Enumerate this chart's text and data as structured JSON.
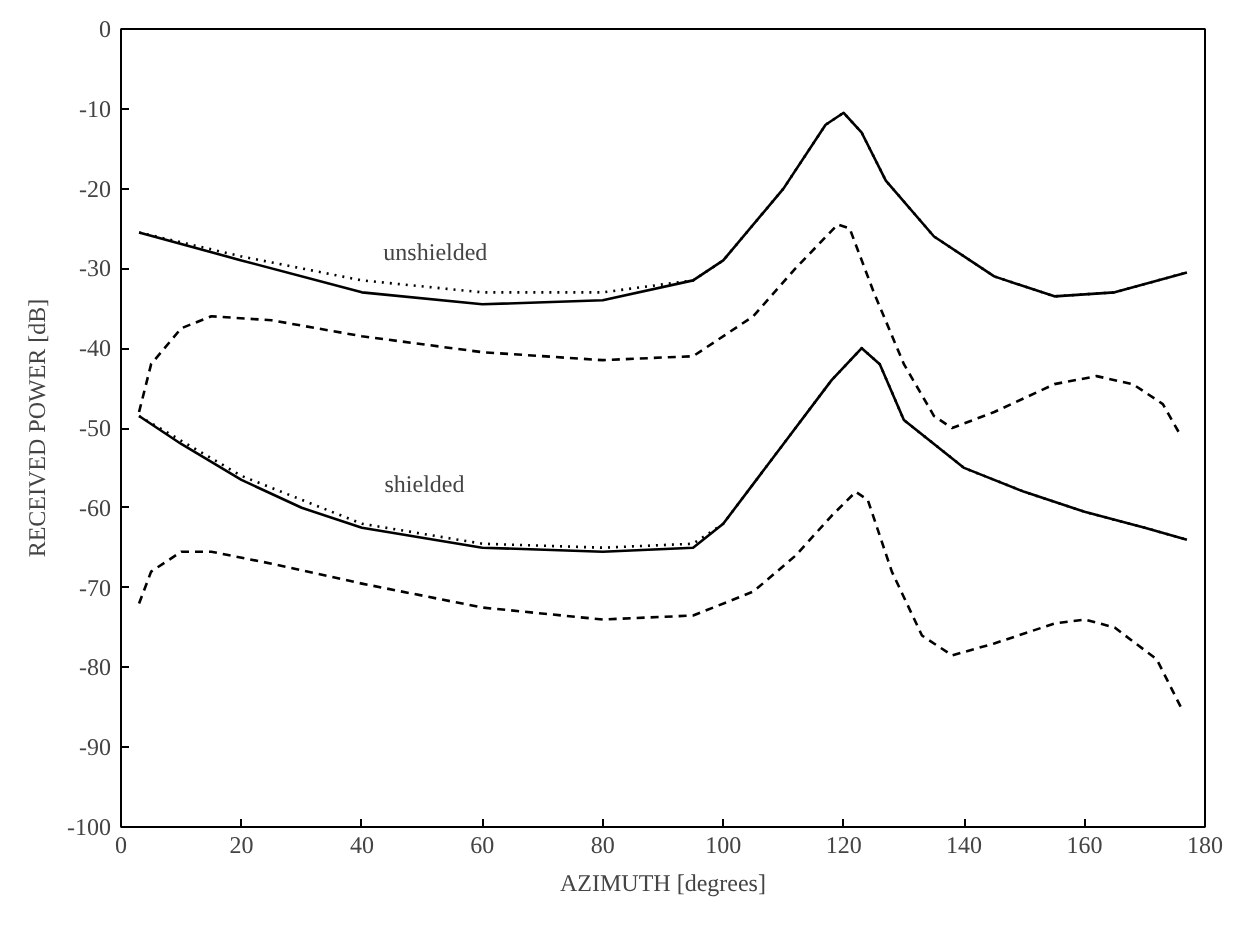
{
  "chart_data": {
    "type": "line",
    "xlabel": "AZIMUTH [degrees]",
    "ylabel": "RECEIVED POWER [dB]",
    "xlim": [
      0,
      180
    ],
    "ylim": [
      -100,
      0
    ],
    "xticks": [
      0,
      20,
      40,
      60,
      80,
      100,
      120,
      140,
      160,
      180
    ],
    "yticks": [
      0,
      -10,
      -20,
      -30,
      -40,
      -50,
      -60,
      -70,
      -80,
      -90,
      -100
    ],
    "grid": false,
    "annotations": [
      "unshielded",
      "shielded"
    ],
    "series": [
      {
        "color": "#000000",
        "line_style": "solid",
        "x": [
          3,
          20,
          40,
          60,
          80,
          95,
          100,
          110,
          117,
          120,
          123,
          127,
          135,
          145,
          155,
          165,
          177
        ],
        "values": [
          -25.5,
          -29,
          -33,
          -34.5,
          -34,
          -31.5,
          -29,
          -20,
          -12,
          -10.5,
          -13,
          -19,
          -26,
          -31,
          -33.5,
          -33,
          -30.5
        ]
      },
      {
        "color": "#000000",
        "line_style": "dotted",
        "x": [
          3,
          20,
          40,
          60,
          80,
          95,
          100,
          110,
          117,
          120,
          123,
          127,
          135,
          145,
          155,
          165,
          177
        ],
        "values": [
          -25.5,
          -28.5,
          -31.5,
          -33,
          -33,
          -31.5,
          -29,
          -20,
          -12,
          -10.5,
          -13,
          -19,
          -26,
          -31,
          -33.5,
          -33,
          -30.5
        ]
      },
      {
        "color": "#000000",
        "line_style": "dashed",
        "x": [
          3,
          5,
          10,
          15,
          25,
          40,
          60,
          80,
          95,
          105,
          112,
          119,
          121,
          125,
          130,
          135,
          138,
          145,
          155,
          162,
          168,
          173,
          176
        ],
        "values": [
          -48,
          -42,
          -37.5,
          -36,
          -36.5,
          -38.5,
          -40.5,
          -41.5,
          -41,
          -36,
          -30,
          -24.5,
          -25,
          -33,
          -42,
          -48.5,
          -50,
          -48,
          -44.5,
          -43.5,
          -44.5,
          -47,
          -51
        ]
      },
      {
        "color": "#000000",
        "line_style": "solid",
        "x": [
          3,
          10,
          20,
          30,
          40,
          60,
          80,
          95,
          100,
          110,
          118,
          123,
          126,
          130,
          140,
          150,
          160,
          170,
          177
        ],
        "values": [
          -48.5,
          -52,
          -56.5,
          -60,
          -62.5,
          -65,
          -65.5,
          -65,
          -62,
          -52,
          -44,
          -40,
          -42,
          -49,
          -55,
          -58,
          -60.5,
          -62.5,
          -64
        ]
      },
      {
        "color": "#000000",
        "line_style": "dotted",
        "x": [
          3,
          20,
          40,
          60,
          80,
          95,
          100,
          110,
          118,
          123,
          126,
          130,
          140,
          150,
          160,
          170,
          177
        ],
        "values": [
          -48.5,
          -56,
          -62,
          -64.5,
          -65,
          -64.5,
          -62,
          -52,
          -44,
          -40,
          -42,
          -49,
          -55,
          -58,
          -60.5,
          -62.5,
          -64
        ]
      },
      {
        "color": "#000000",
        "line_style": "dashed",
        "x": [
          3,
          5,
          10,
          15,
          25,
          40,
          60,
          80,
          95,
          105,
          112,
          118,
          122,
          124,
          128,
          133,
          138,
          145,
          155,
          160,
          165,
          172,
          176
        ],
        "values": [
          -72,
          -68,
          -65.5,
          -65.5,
          -67,
          -69.5,
          -72.5,
          -74,
          -73.5,
          -70.5,
          -66,
          -61,
          -58,
          -59,
          -68,
          -76,
          -78.5,
          -77,
          -74.5,
          -74,
          -75,
          -79,
          -85
        ]
      }
    ]
  }
}
